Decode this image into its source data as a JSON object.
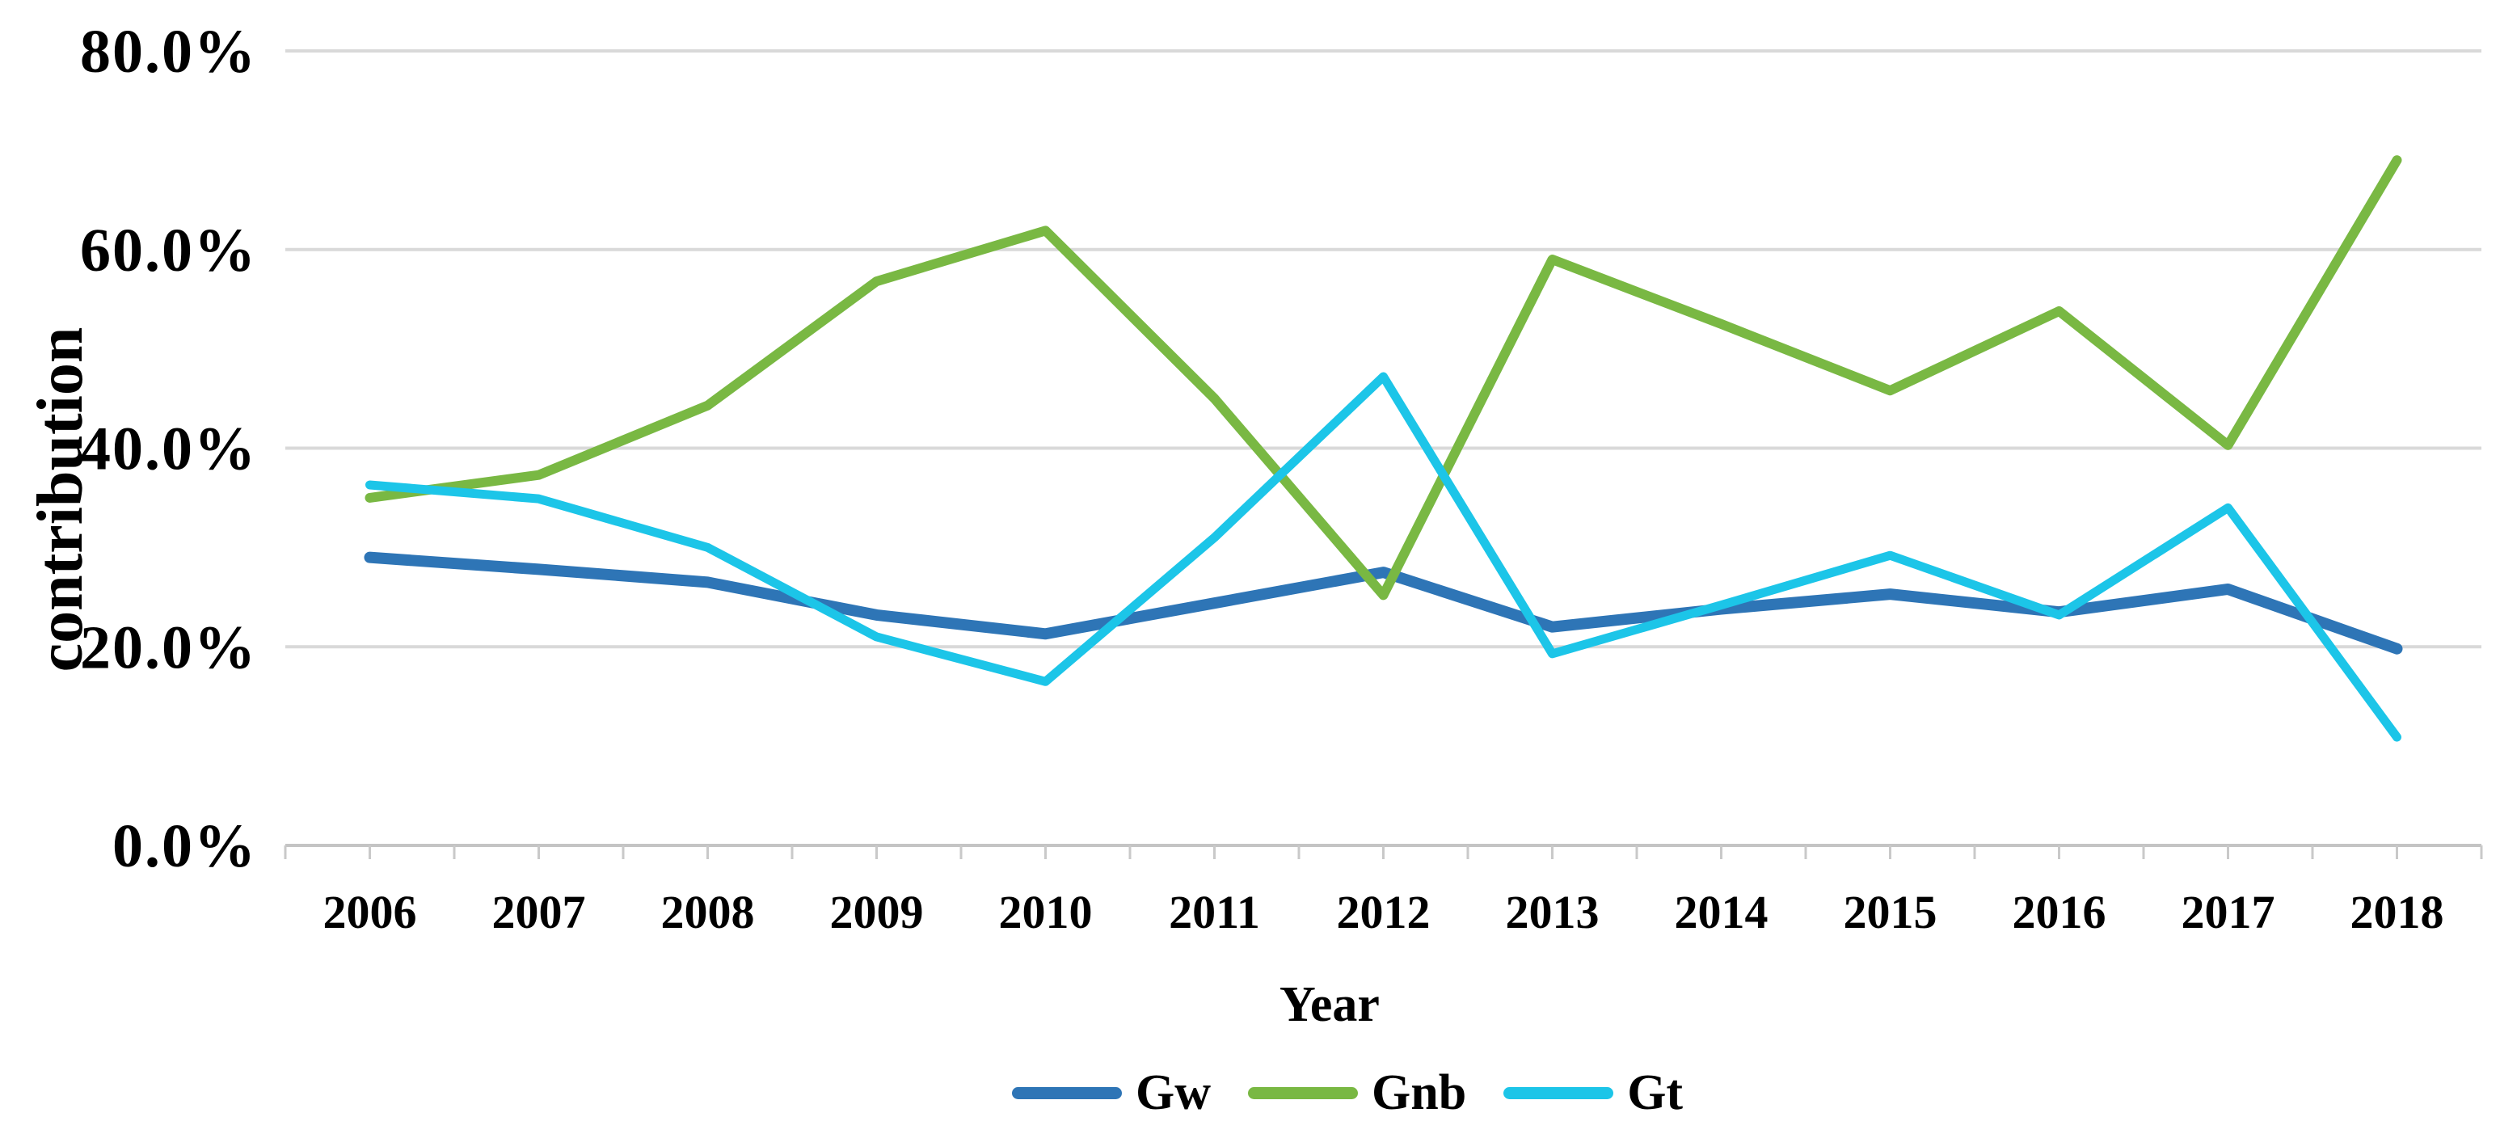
{
  "chart_data": {
    "type": "line",
    "categories": [
      "2006",
      "2007",
      "2008",
      "2009",
      "2010",
      "2011",
      "2012",
      "2013",
      "2014",
      "2015",
      "2016",
      "2017",
      "2018"
    ],
    "series": [
      {
        "name": "Gw",
        "color": "#2E75B6",
        "stroke_width": 14,
        "values": [
          29.0,
          27.8,
          26.5,
          23.2,
          21.3,
          24.4,
          27.5,
          22.0,
          23.8,
          25.3,
          23.5,
          25.8,
          19.8
        ]
      },
      {
        "name": "Gnb",
        "color": "#79B843",
        "stroke_width": 12,
        "values": [
          35.0,
          37.3,
          44.3,
          56.8,
          61.9,
          45.0,
          25.2,
          59.0,
          52.5,
          45.8,
          53.8,
          40.3,
          69.0
        ]
      },
      {
        "name": "Gt",
        "color": "#1CC5E8",
        "stroke_width": 11,
        "values": [
          36.3,
          34.9,
          30.0,
          21.0,
          16.5,
          31.0,
          47.2,
          19.3,
          24.2,
          29.2,
          23.2,
          34.0,
          10.9
        ]
      }
    ],
    "title": "",
    "xlabel": "Year",
    "ylabel": "contribution",
    "y_axis": {
      "min": 0,
      "max": 80,
      "ticks": [
        {
          "label": "80.0%",
          "value": 80
        },
        {
          "label": "60.0%",
          "value": 60
        },
        {
          "label": "40.0%",
          "value": 40
        },
        {
          "label": "20.0%",
          "value": 20
        },
        {
          "label": "0.0%",
          "value": 0
        }
      ]
    },
    "grid": true,
    "legend_position": "bottom",
    "colors": {
      "gridline": "#D9D9D9",
      "axis_line": "#C4C4C4",
      "tick_mark": "#C9C9C9",
      "text": "#000000",
      "background": "#FFFFFF"
    }
  }
}
